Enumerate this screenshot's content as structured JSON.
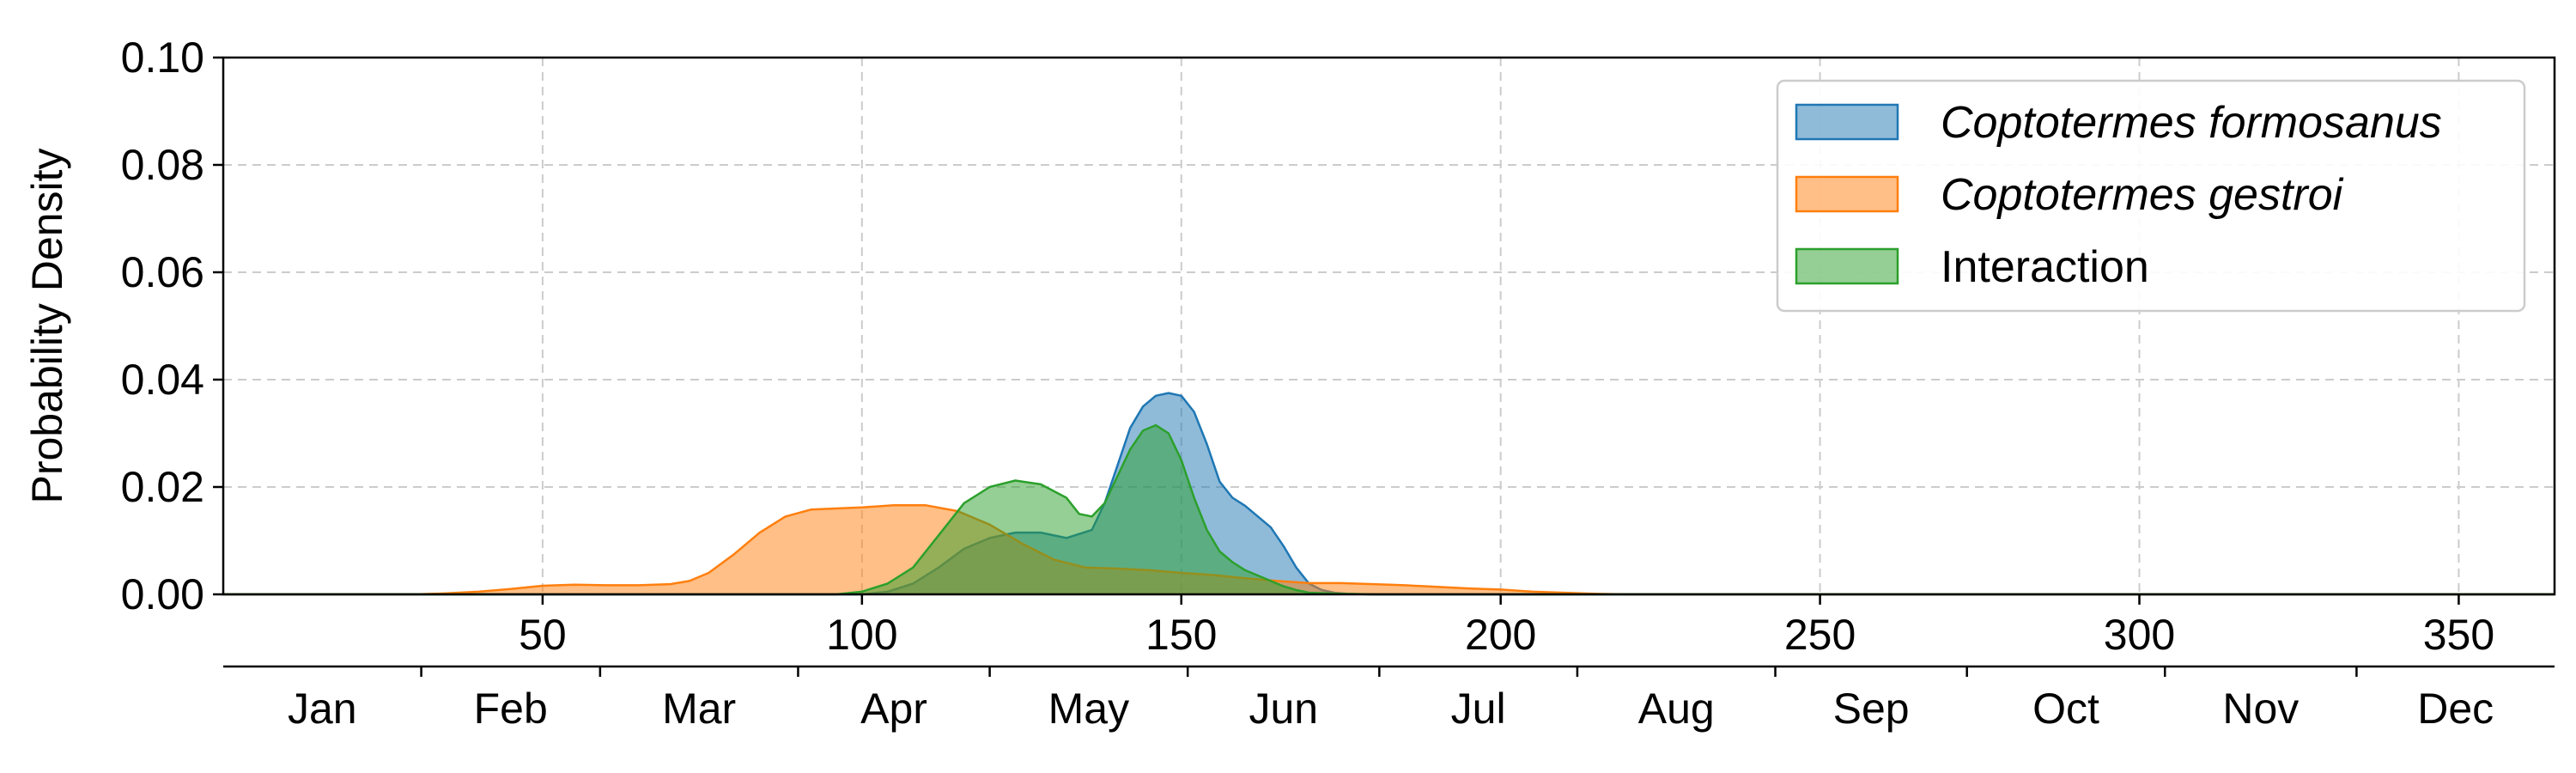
{
  "chart_data": {
    "type": "area",
    "title": "",
    "xlabel": "",
    "ylabel": "Probability Density",
    "xlim": [
      0,
      365
    ],
    "ylim": [
      0,
      0.1
    ],
    "x_ticks": [
      50,
      100,
      150,
      200,
      250,
      300,
      350
    ],
    "y_ticks": [
      "0.00",
      "0.02",
      "0.04",
      "0.06",
      "0.08",
      "0.10"
    ],
    "grid": true,
    "legend_position": "top-right",
    "month_axis": {
      "labels": [
        "Jan",
        "Feb",
        "Mar",
        "Apr",
        "May",
        "Jun",
        "Jul",
        "Aug",
        "Sep",
        "Oct",
        "Nov",
        "Dec"
      ],
      "boundaries": [
        0,
        31,
        59,
        90,
        120,
        151,
        181,
        212,
        243,
        273,
        304,
        334,
        365
      ]
    },
    "series": [
      {
        "name": "Coptotermes formosanus",
        "italic": true,
        "fill": "#1f77b4",
        "stroke": "#1f77b4",
        "x": [
          0,
          100,
          104,
          108,
          112,
          116,
          120,
          124,
          128,
          132,
          136,
          138,
          140,
          142,
          144,
          146,
          148,
          150,
          152,
          154,
          156,
          158,
          160,
          162,
          164,
          166,
          168,
          170,
          172,
          174,
          176,
          180,
          365
        ],
        "y": [
          0,
          0,
          0.0005,
          0.002,
          0.005,
          0.0085,
          0.0105,
          0.0115,
          0.0115,
          0.0105,
          0.012,
          0.017,
          0.024,
          0.031,
          0.035,
          0.037,
          0.0375,
          0.037,
          0.034,
          0.028,
          0.021,
          0.018,
          0.0165,
          0.0145,
          0.0125,
          0.009,
          0.005,
          0.002,
          0.0008,
          0.0003,
          0.0001,
          0,
          0
        ]
      },
      {
        "name": "Coptotermes gestroi",
        "italic": true,
        "fill": "#ff7f0e",
        "stroke": "#ff7f0e",
        "x": [
          0,
          30,
          35,
          40,
          45,
          50,
          55,
          60,
          65,
          70,
          73,
          76,
          80,
          84,
          88,
          92,
          96,
          100,
          105,
          110,
          115,
          120,
          125,
          130,
          135,
          140,
          145,
          150,
          155,
          160,
          165,
          170,
          175,
          180,
          185,
          190,
          195,
          200,
          205,
          210,
          215,
          220,
          230,
          365
        ],
        "y": [
          0,
          0,
          0.0002,
          0.0005,
          0.001,
          0.0016,
          0.0018,
          0.0017,
          0.0017,
          0.0019,
          0.0025,
          0.004,
          0.0075,
          0.0115,
          0.0145,
          0.0158,
          0.016,
          0.0162,
          0.0166,
          0.0166,
          0.0155,
          0.013,
          0.0095,
          0.0065,
          0.005,
          0.0048,
          0.0045,
          0.004,
          0.0036,
          0.003,
          0.0025,
          0.0021,
          0.0021,
          0.0019,
          0.0017,
          0.0014,
          0.0011,
          0.0009,
          0.0005,
          0.0003,
          0.0001,
          0,
          0,
          0
        ]
      },
      {
        "name": "Interaction",
        "italic": false,
        "fill": "#2ca02c",
        "stroke": "#2ca02c",
        "x": [
          0,
          96,
          100,
          104,
          108,
          112,
          116,
          120,
          124,
          128,
          132,
          134,
          136,
          138,
          140,
          142,
          144,
          146,
          148,
          150,
          152,
          154,
          156,
          158,
          160,
          162,
          164,
          166,
          168,
          170,
          175,
          180,
          365
        ],
        "y": [
          0,
          0,
          0.0005,
          0.002,
          0.005,
          0.011,
          0.017,
          0.02,
          0.0212,
          0.0205,
          0.018,
          0.015,
          0.0145,
          0.017,
          0.022,
          0.027,
          0.0305,
          0.0315,
          0.03,
          0.025,
          0.018,
          0.012,
          0.008,
          0.006,
          0.0045,
          0.0035,
          0.0025,
          0.0015,
          0.0008,
          0.0003,
          0.0001,
          0,
          0
        ]
      }
    ]
  }
}
